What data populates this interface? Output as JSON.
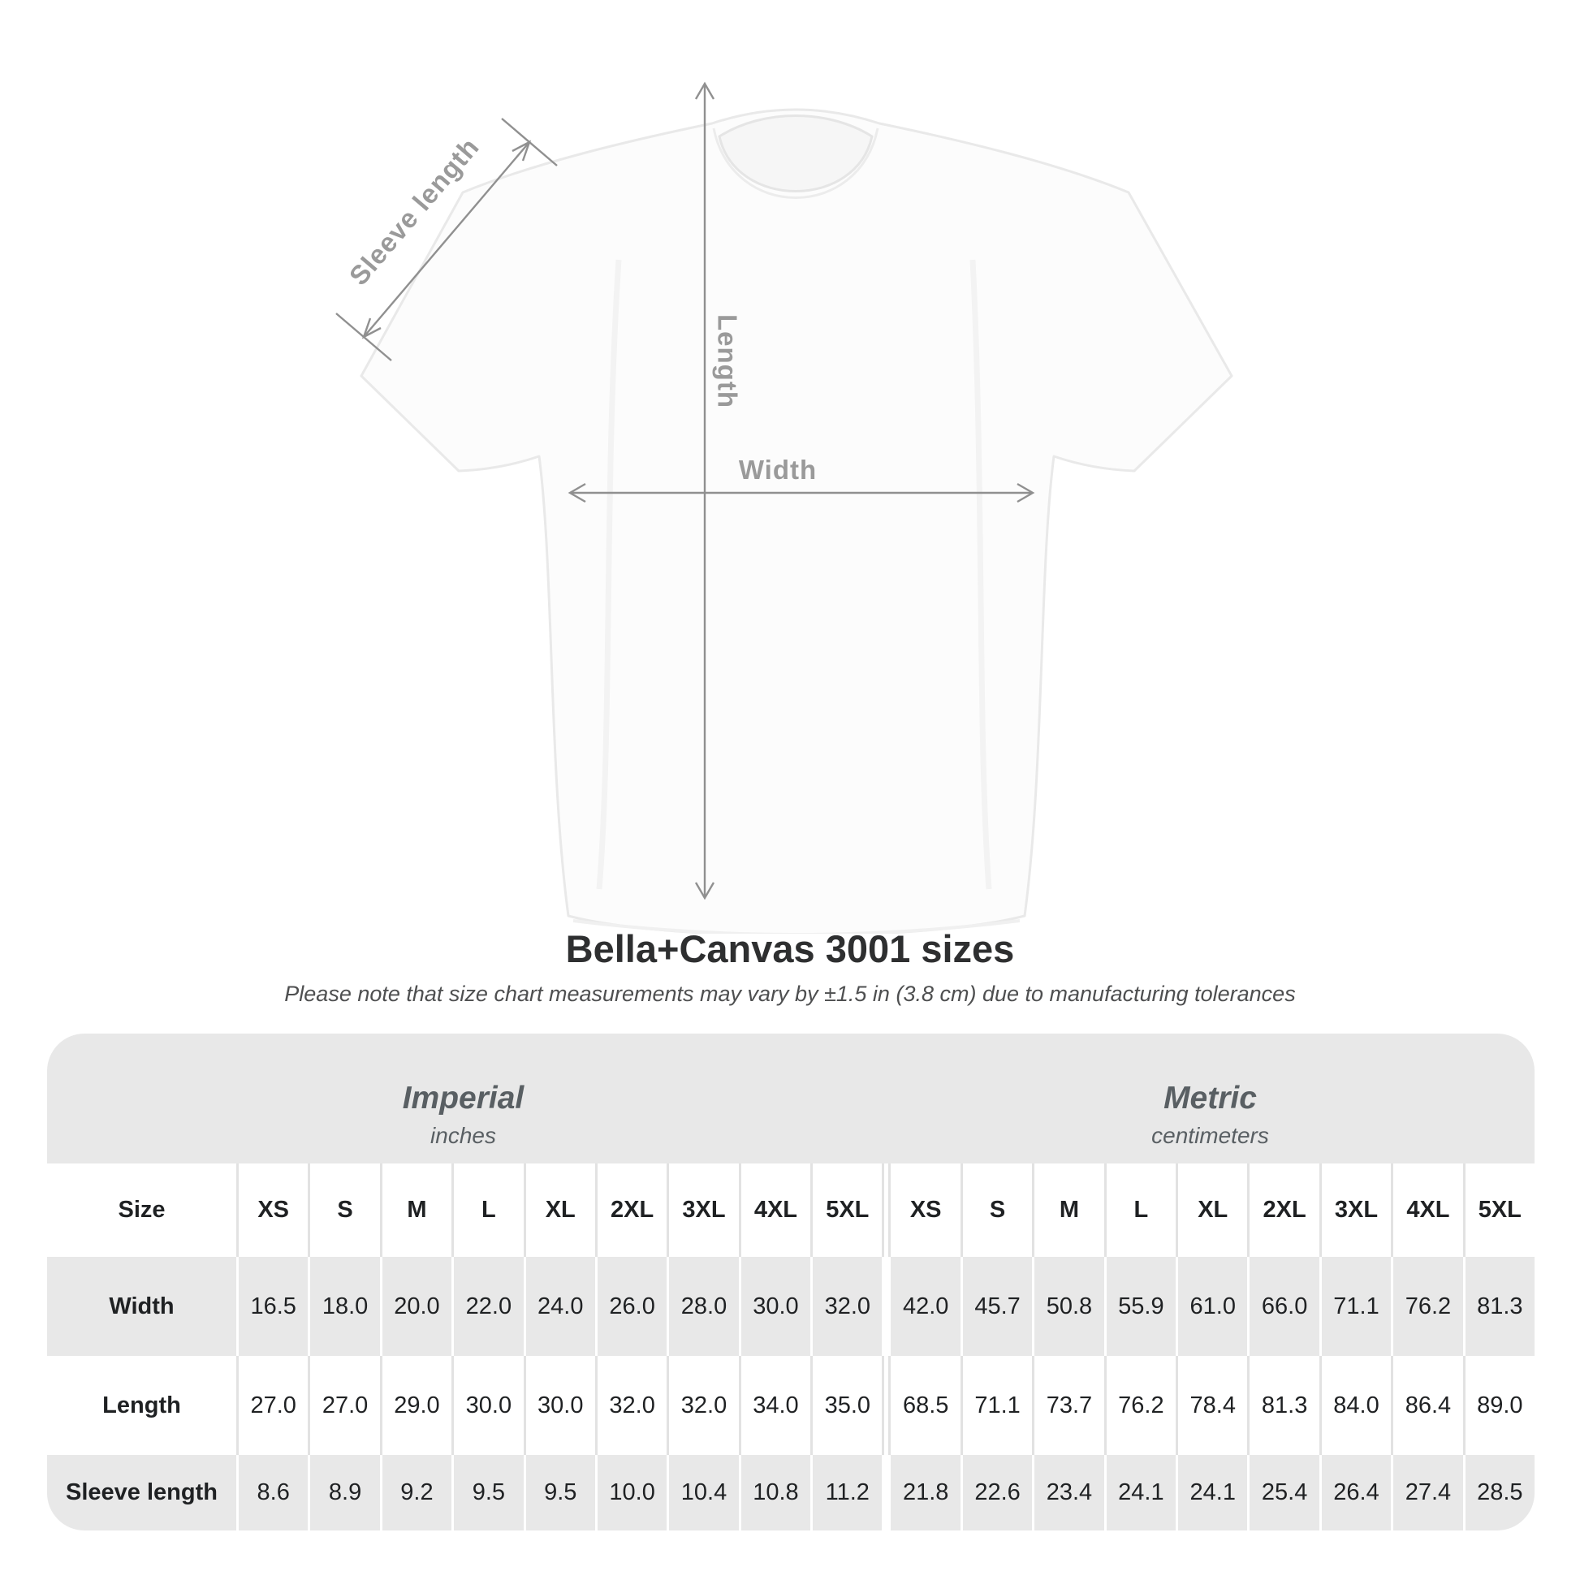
{
  "diagram": {
    "labels": {
      "sleeve_length": "Sleeve length",
      "length": "Length",
      "width": "Width"
    }
  },
  "heading": {
    "title": "Bella+Canvas 3001 sizes",
    "subtitle": "Please note that size chart measurements may vary by ±1.5 in (3.8 cm) due to manufacturing tolerances"
  },
  "table": {
    "size_header_label": "Size",
    "unit_groups": [
      {
        "name": "Imperial",
        "unit": "inches"
      },
      {
        "name": "Metric",
        "unit": "centimeters"
      }
    ],
    "sizes": [
      "XS",
      "S",
      "M",
      "L",
      "XL",
      "2XL",
      "3XL",
      "4XL",
      "5XL"
    ],
    "rows": [
      {
        "label": "Width",
        "imperial": [
          "16.5",
          "18.0",
          "20.0",
          "22.0",
          "24.0",
          "26.0",
          "28.0",
          "30.0",
          "32.0"
        ],
        "metric": [
          "42.0",
          "45.7",
          "50.8",
          "55.9",
          "61.0",
          "66.0",
          "71.1",
          "76.2",
          "81.3"
        ]
      },
      {
        "label": "Length",
        "imperial": [
          "27.0",
          "27.0",
          "29.0",
          "30.0",
          "30.0",
          "32.0",
          "32.0",
          "34.0",
          "35.0"
        ],
        "metric": [
          "68.5",
          "71.1",
          "73.7",
          "76.2",
          "78.4",
          "81.3",
          "84.0",
          "86.4",
          "89.0"
        ]
      },
      {
        "label": "Sleeve length",
        "imperial": [
          "8.6",
          "8.9",
          "9.2",
          "9.5",
          "9.5",
          "10.0",
          "10.4",
          "10.8",
          "11.2"
        ],
        "metric": [
          "21.8",
          "22.6",
          "23.4",
          "24.1",
          "24.1",
          "25.4",
          "26.4",
          "27.4",
          "28.5"
        ]
      }
    ]
  },
  "chart_data": {
    "type": "table",
    "title": "Bella+Canvas 3001 sizes",
    "note": "Measurements may vary by ±1.5 in (3.8 cm) due to manufacturing tolerances",
    "units": {
      "imperial": "inches",
      "metric": "centimeters"
    },
    "sizes": [
      "XS",
      "S",
      "M",
      "L",
      "XL",
      "2XL",
      "3XL",
      "4XL",
      "5XL"
    ],
    "measurements": [
      {
        "label": "Width",
        "imperial_in": [
          16.5,
          18.0,
          20.0,
          22.0,
          24.0,
          26.0,
          28.0,
          30.0,
          32.0
        ],
        "metric_cm": [
          42.0,
          45.7,
          50.8,
          55.9,
          61.0,
          66.0,
          71.1,
          76.2,
          81.3
        ]
      },
      {
        "label": "Length",
        "imperial_in": [
          27.0,
          27.0,
          29.0,
          30.0,
          30.0,
          32.0,
          32.0,
          34.0,
          35.0
        ],
        "metric_cm": [
          68.5,
          71.1,
          73.7,
          76.2,
          78.4,
          81.3,
          84.0,
          86.4,
          89.0
        ]
      },
      {
        "label": "Sleeve length",
        "imperial_in": [
          8.6,
          8.9,
          9.2,
          9.5,
          9.5,
          10.0,
          10.4,
          10.8,
          11.2
        ],
        "metric_cm": [
          21.8,
          22.6,
          23.4,
          24.1,
          24.1,
          25.4,
          26.4,
          27.4,
          28.5
        ]
      }
    ]
  },
  "colors": {
    "table_gray": "#e8e8e8",
    "separator_gray": "#e2e2e2",
    "header_text": "#595f63",
    "value_text": "#1f2123",
    "dimension_line": "#909090",
    "dimension_label": "#9a9a9a",
    "title_text": "#2e2f30"
  }
}
